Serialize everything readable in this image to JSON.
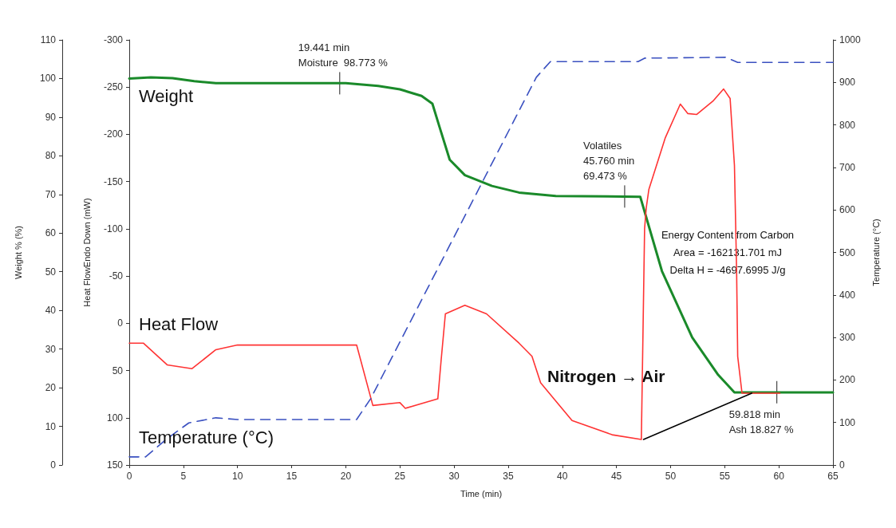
{
  "chart_data": {
    "type": "line",
    "xlabel": "Time (min)",
    "ylabel": "Weight % (%)",
    "y2label": "Heat FlowEndo Down (mW)",
    "y3label": "Temperature (°C)",
    "xlim": [
      0,
      65
    ],
    "xticks": [
      0,
      5,
      10,
      15,
      20,
      25,
      30,
      35,
      40,
      45,
      50,
      55,
      60,
      65
    ],
    "ylim": [
      0,
      110
    ],
    "yticks": [
      0,
      10,
      20,
      30,
      40,
      50,
      60,
      70,
      80,
      90,
      100,
      110
    ],
    "y2lim": [
      150,
      -300
    ],
    "y2ticks": [
      150,
      100,
      50,
      0,
      -50,
      -100,
      -150,
      -200,
      -250,
      -300
    ],
    "y3lim": [
      0,
      1000
    ],
    "y3ticks": [
      0,
      100,
      200,
      300,
      400,
      500,
      600,
      700,
      800,
      900,
      1000
    ],
    "grid": false,
    "legend": false,
    "marker": "none",
    "series": [
      {
        "name": "Weight",
        "color": "#1a8a2a",
        "line_style": "solid",
        "x": [
          0,
          2,
          4,
          6,
          8,
          20,
          23,
          25,
          27,
          28,
          28.6,
          29.6,
          31.0,
          33.5,
          36.0,
          39.4,
          47.2,
          49.2,
          52.0,
          54.4,
          55.9,
          65
        ],
        "values": [
          100,
          100.3,
          100.1,
          99.3,
          98.8,
          98.8,
          98.1,
          97.2,
          95.5,
          93.5,
          88,
          79,
          75,
          72.2,
          70.5,
          69.6,
          69.4,
          50.2,
          33.0,
          23.3,
          18.8,
          18.8
        ]
      },
      {
        "name": "Heat Flow",
        "color": "#ff3333",
        "line_style": "solid",
        "axis": "y2",
        "x": [
          0,
          1.3,
          3.5,
          5.8,
          8,
          10,
          21,
          22.5,
          25,
          25.5,
          28.5,
          28.8,
          29.2,
          31,
          33,
          36,
          37.2,
          38,
          40.9,
          44.6,
          47.3,
          47.6,
          47.75,
          48,
          49.5,
          50.9,
          51.6,
          52.4,
          53.9,
          54.9,
          55.5,
          55.9,
          56.1,
          56.2,
          56.6,
          60.1
        ],
        "values": [
          21,
          21,
          44,
          48,
          28,
          23,
          23,
          87,
          84,
          90,
          80,
          40,
          -10,
          -19,
          -10,
          21,
          35,
          63,
          103,
          118,
          123,
          -100,
          -122,
          -142,
          -196,
          -232,
          -222,
          -221,
          -235,
          -248,
          -238,
          -167,
          -55,
          35,
          74,
          74
        ]
      },
      {
        "name": "Temperature (°C)",
        "color": "#3a50c0",
        "line_style": "dashed",
        "axis": "y3",
        "x": [
          0,
          1.5,
          3.5,
          5.5,
          8,
          10,
          21,
          22.3,
          37.6,
          38.9,
          47.0,
          47.6,
          55.1,
          56.2,
          65
        ],
        "values": [
          19,
          19,
          62,
          99,
          111,
          107,
          107,
          156,
          912,
          949,
          949,
          957,
          959,
          947,
          947
        ]
      },
      {
        "color": "#000000",
        "line_style": "solid",
        "axis": "y2",
        "x": [
          47.5,
          57.5
        ],
        "values": [
          123,
          74
        ]
      }
    ],
    "annotations": [
      {
        "text": "19.441 min\nMoisture  98.773 %",
        "x": 19.441,
        "y": 98.773
      },
      {
        "text": "Volatiles\n45.760 min\n69.473 %",
        "x": 45.76,
        "y": 69.473
      },
      {
        "text": "59.818 min\nAsh 18.827 %",
        "x": 59.818,
        "y": 18.827
      },
      "Energy Content from Carbon\nArea = -162131.701 mJ\nDelta H = -4697.6995 J/g",
      "Nitrogen → Air"
    ]
  }
}
